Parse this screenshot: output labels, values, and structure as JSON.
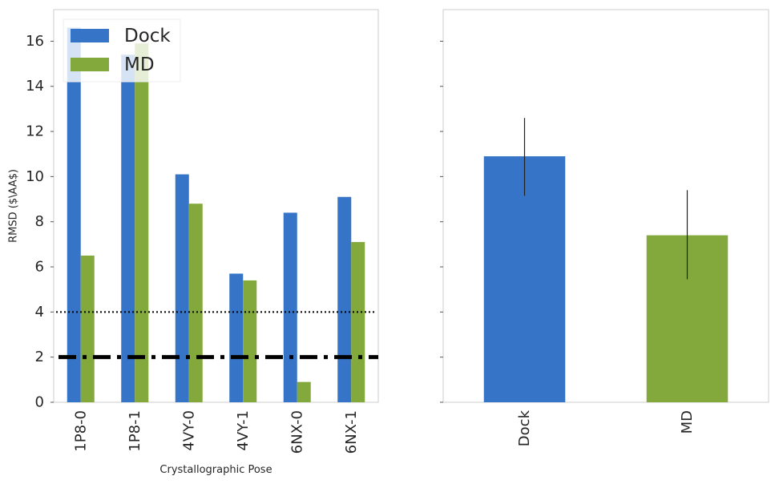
{
  "colors": {
    "dock": "#3574c6",
    "md": "#83a83b",
    "axis_frame": "#cccccc",
    "tick_text": "#262626",
    "threshold": "#000000",
    "error_bar": "#222222"
  },
  "chart_data": [
    {
      "type": "bar",
      "panel": "left",
      "categories": [
        "1P8-0",
        "1P8-1",
        "4VY-0",
        "4VY-1",
        "6NX-0",
        "6NX-1"
      ],
      "series": [
        {
          "name": "Dock",
          "values": [
            16.6,
            15.4,
            10.1,
            5.7,
            8.4,
            9.1
          ]
        },
        {
          "name": "MD",
          "values": [
            6.5,
            15.9,
            8.8,
            5.4,
            0.9,
            7.1
          ]
        }
      ],
      "xlabel": "Crystallographic Pose",
      "ylabel": "RMSD ($\\AA$)",
      "ylim": [
        0,
        17.4
      ],
      "yticks": [
        0,
        2,
        4,
        6,
        8,
        10,
        12,
        14,
        16
      ],
      "reference_lines": [
        {
          "y": 4,
          "style": "dotted"
        },
        {
          "y": 2,
          "style": "dash-dot-thick"
        }
      ],
      "legend": {
        "placement": "top-left",
        "entries": [
          "Dock",
          "MD"
        ]
      },
      "grid": false
    },
    {
      "type": "bar",
      "panel": "right",
      "categories": [
        "Dock",
        "MD"
      ],
      "values": [
        10.9,
        7.4
      ],
      "error_bars": [
        [
          9.15,
          12.6
        ],
        [
          5.45,
          9.4
        ]
      ],
      "ylim": [
        0,
        17.4
      ],
      "shared_y": true,
      "grid": false
    }
  ]
}
